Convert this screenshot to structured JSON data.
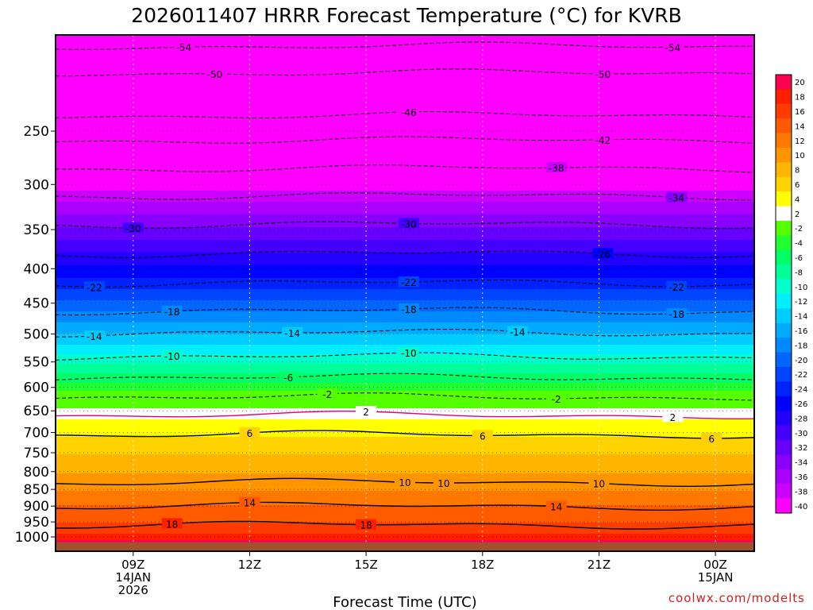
{
  "chart_data": {
    "type": "heatmap",
    "title": "2026011407 HRRR Forecast Temperature (°C) for KVRB",
    "xlabel": "Forecast Time (UTC)",
    "ylabel": "",
    "x_ticks": [
      {
        "hour": 9,
        "lines": [
          "09Z",
          "14JAN",
          "2026"
        ]
      },
      {
        "hour": 12,
        "lines": [
          "12Z"
        ]
      },
      {
        "hour": 15,
        "lines": [
          "15Z"
        ]
      },
      {
        "hour": 18,
        "lines": [
          "18Z"
        ]
      },
      {
        "hour": 21,
        "lines": [
          "21Z"
        ]
      },
      {
        "hour": 24,
        "lines": [
          "00Z",
          "15JAN"
        ]
      }
    ],
    "x_range": [
      7.0,
      25.0
    ],
    "y_axis": {
      "scale": "log",
      "range": [
        180,
        1050
      ],
      "inverted": true
    },
    "y_ticks": [
      250,
      300,
      350,
      400,
      450,
      500,
      550,
      600,
      650,
      700,
      750,
      800,
      850,
      900,
      950,
      1000
    ],
    "surface_pressure_hPa": 1018,
    "temperature_profile": {
      "pressure": [
        1018,
        1000,
        950,
        900,
        850,
        800,
        750,
        700,
        650,
        600,
        550,
        500,
        450,
        400,
        350,
        300,
        250,
        200,
        180
      ],
      "temp_c": [
        21,
        18.5,
        16,
        14.2,
        11.8,
        9.7,
        7.8,
        5.6,
        2.8,
        -3.0,
        -8.5,
        -14.0,
        -19.5,
        -25.5,
        -31.5,
        -39.0,
        -47.5,
        -54.0,
        -56.0
      ]
    },
    "contour_lines": [
      {
        "value": -54,
        "p": 187,
        "labels": [
          {
            "h": 10.3,
            "t": "-54"
          },
          {
            "h": 22.9,
            "t": "-54"
          }
        ]
      },
      {
        "value": -50,
        "p": 205,
        "labels": [
          {
            "h": 11.1,
            "t": "-50"
          },
          {
            "h": 21.1,
            "t": "-50"
          }
        ]
      },
      {
        "value": -46,
        "p": 237,
        "labels": [
          {
            "h": 16.1,
            "t": "-46"
          }
        ]
      },
      {
        "value": -42,
        "p": 258,
        "labels": [
          {
            "h": 21.1,
            "t": "-42"
          }
        ]
      },
      {
        "value": -38,
        "p": 284,
        "labels": [
          {
            "h": 19.9,
            "t": "-38"
          }
        ]
      },
      {
        "value": -34,
        "p": 312,
        "labels": [
          {
            "h": 23.0,
            "t": "-34"
          }
        ]
      },
      {
        "value": -30,
        "p": 344,
        "labels": [
          {
            "h": 9.0,
            "t": "-30"
          },
          {
            "h": 16.1,
            "t": "-30"
          }
        ]
      },
      {
        "value": -26,
        "p": 380,
        "labels": [
          {
            "h": 21.1,
            "t": "-26"
          }
        ]
      },
      {
        "value": -22,
        "p": 420,
        "labels": [
          {
            "h": 8.0,
            "t": "-22"
          },
          {
            "h": 16.1,
            "t": "-22"
          },
          {
            "h": 23.0,
            "t": "-22"
          }
        ]
      },
      {
        "value": -18,
        "p": 462,
        "labels": [
          {
            "h": 10.0,
            "t": "-18"
          },
          {
            "h": 16.1,
            "t": "-18"
          },
          {
            "h": 23.0,
            "t": "-18"
          }
        ]
      },
      {
        "value": -14,
        "p": 498,
        "labels": [
          {
            "h": 8.0,
            "t": "-14"
          },
          {
            "h": 13.1,
            "t": "-14"
          },
          {
            "h": 18.9,
            "t": "-14"
          }
        ]
      },
      {
        "value": -10,
        "p": 540,
        "labels": [
          {
            "h": 10.0,
            "t": "-10"
          },
          {
            "h": 16.1,
            "t": "-10"
          }
        ]
      },
      {
        "value": -6,
        "p": 580,
        "labels": [
          {
            "h": 13.0,
            "t": "-6"
          }
        ]
      },
      {
        "value": -2,
        "p": 620,
        "labels": [
          {
            "h": 14.0,
            "t": "-2"
          },
          {
            "h": 19.9,
            "t": "-2"
          }
        ]
      },
      {
        "value": 2,
        "p": 660,
        "labels": [
          {
            "h": 15.0,
            "t": "2"
          },
          {
            "h": 22.9,
            "t": "2"
          }
        ]
      },
      {
        "value": 6,
        "p": 705,
        "labels": [
          {
            "h": 12.0,
            "t": "6"
          },
          {
            "h": 18.0,
            "t": "6"
          },
          {
            "h": 23.9,
            "t": "6"
          }
        ]
      },
      {
        "value": 10,
        "p": 830,
        "labels": [
          {
            "h": 16.0,
            "t": "10"
          },
          {
            "h": 17.0,
            "t": "10"
          },
          {
            "h": 21.0,
            "t": "10"
          }
        ]
      },
      {
        "value": 14,
        "p": 900,
        "labels": [
          {
            "h": 12.0,
            "t": "14"
          },
          {
            "h": 19.9,
            "t": "14"
          }
        ]
      },
      {
        "value": 18,
        "p": 960,
        "labels": [
          {
            "h": 10.0,
            "t": "18"
          },
          {
            "h": 15.0,
            "t": "18"
          }
        ]
      }
    ],
    "colorbar": {
      "levels": [
        20,
        18,
        16,
        14,
        12,
        10,
        8,
        6,
        4,
        2,
        -2,
        -4,
        -6,
        -8,
        -10,
        -12,
        -14,
        -16,
        -18,
        -20,
        -22,
        -24,
        -26,
        -28,
        -30,
        -32,
        -34,
        -36,
        -38,
        -40
      ],
      "colors": [
        "#ff0050",
        "#ff1e00",
        "#ff3c00",
        "#ff5a00",
        "#ff7800",
        "#ff9600",
        "#ffb400",
        "#ffd200",
        "#ffff00",
        "#ffffff",
        "#55ff00",
        "#22ff33",
        "#00ff66",
        "#00ff99",
        "#00ffcc",
        "#00eeff",
        "#00ccff",
        "#00aaff",
        "#0088ff",
        "#0066ff",
        "#0044ff",
        "#0022ff",
        "#0000ff",
        "#2200ff",
        "#4400ff",
        "#6600ff",
        "#8800ff",
        "#aa00ff",
        "#cc00ff",
        "#ff00ff"
      ]
    },
    "ground_color": "#a0522d",
    "frame_color": "#000000"
  },
  "credit": "coolwx.com/modelts"
}
